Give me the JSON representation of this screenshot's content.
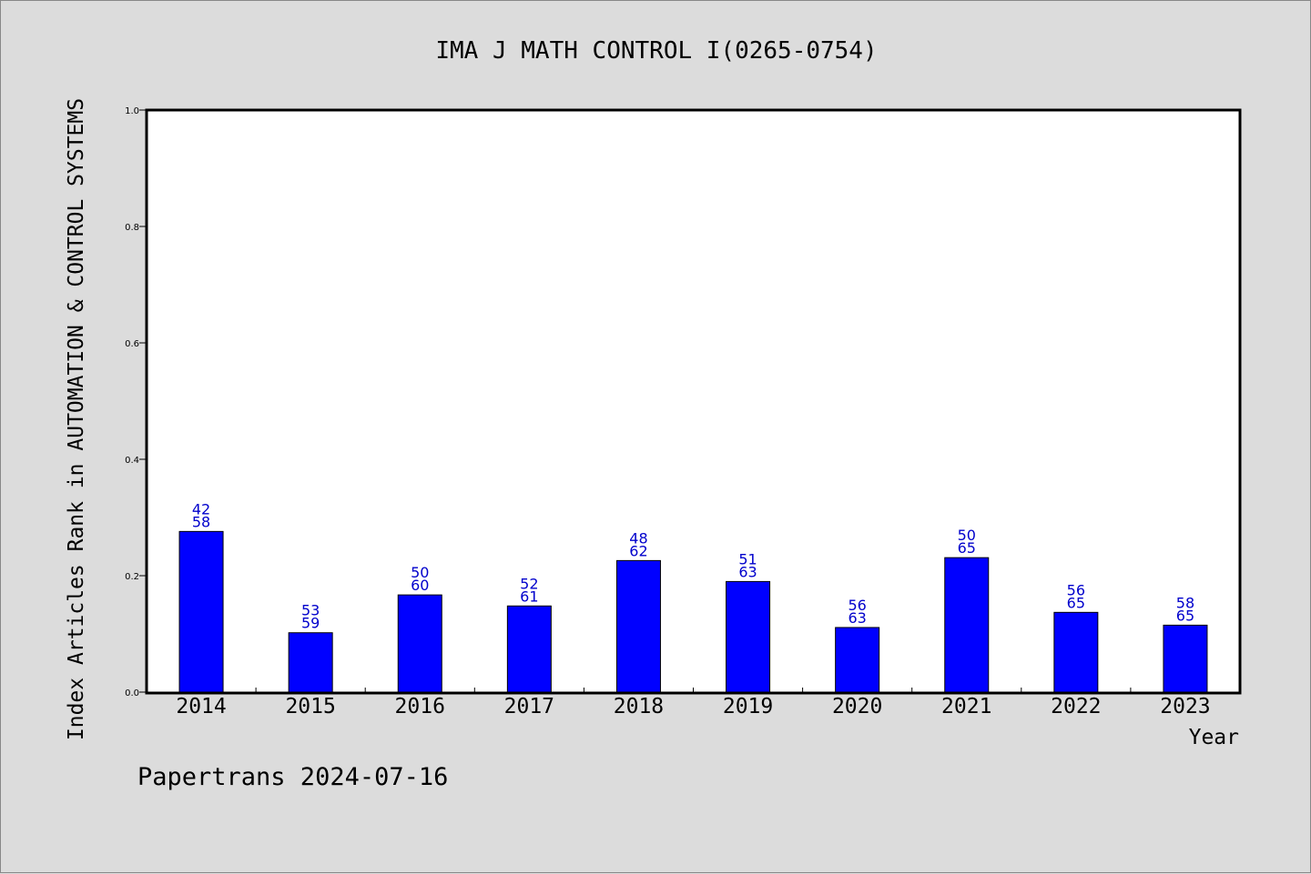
{
  "chart_data": {
    "type": "bar",
    "title": "IMA J MATH CONTROL I(0265-0754)",
    "xlabel": "Year",
    "ylabel": "Index Articles Rank in AUTOMATION & CONTROL SYSTEMS",
    "ylim": [
      0,
      1.0
    ],
    "yticks": [
      "0.0",
      "0.2",
      "0.4",
      "0.6",
      "0.8",
      "1.0"
    ],
    "grid": false,
    "legend": "none",
    "categories": [
      "2014",
      "2015",
      "2016",
      "2017",
      "2018",
      "2019",
      "2020",
      "2021",
      "2022",
      "2023"
    ],
    "values": [
      0.276,
      0.102,
      0.167,
      0.148,
      0.226,
      0.19,
      0.111,
      0.231,
      0.137,
      0.115
    ],
    "labels_top": [
      "42",
      "53",
      "50",
      "52",
      "48",
      "51",
      "56",
      "50",
      "56",
      "58"
    ],
    "labels_bottom": [
      "58",
      "59",
      "60",
      "61",
      "62",
      "63",
      "63",
      "65",
      "65",
      "65"
    ],
    "footer": "Papertrans 2024-07-16",
    "colors": {
      "bar": "#0000ff",
      "label": "#0000cc",
      "background": "#dcdcdc",
      "plot": "#ffffff"
    }
  }
}
